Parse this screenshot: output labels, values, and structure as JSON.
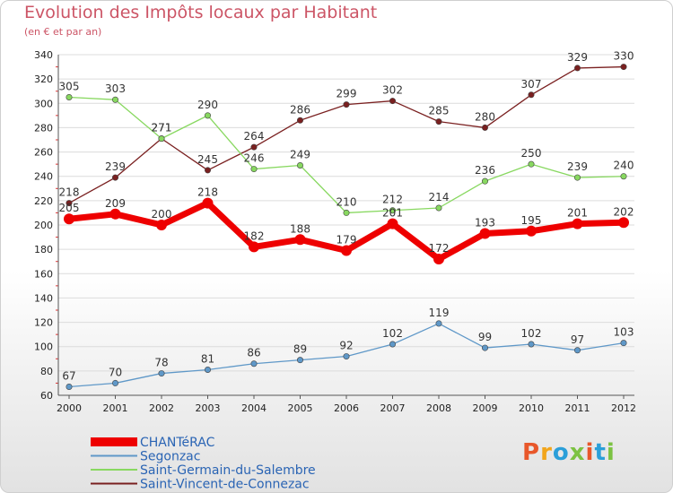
{
  "header": {
    "title": "Evolution des Impôts locaux par Habitant",
    "subtitle": "(en € et par an)"
  },
  "logo": {
    "text": "Proxiti",
    "colors": [
      "#e8572a",
      "#f2a51b",
      "#2b9fd9",
      "#7cc242",
      "#e8572a",
      "#2b9fd9",
      "#7cc242"
    ]
  },
  "chart_data": {
    "type": "line",
    "title": "Evolution des Impôts locaux par Habitant",
    "subtitle": "(en € et par an)",
    "xlabel": "",
    "ylabel": "",
    "x": [
      "2000",
      "2001",
      "2002",
      "2003",
      "2004",
      "2005",
      "2006",
      "2007",
      "2008",
      "2009",
      "2010",
      "2011",
      "2012"
    ],
    "ylim": [
      60,
      340
    ],
    "yticks": [
      60,
      80,
      100,
      120,
      140,
      160,
      180,
      200,
      220,
      240,
      260,
      280,
      300,
      320,
      340
    ],
    "grid": true,
    "legend_position": "bottom-left",
    "series": [
      {
        "name": "Saint-Vincent-de-Connezac",
        "color": "#7a2020",
        "values": [
          218,
          239,
          271,
          245,
          264,
          286,
          299,
          302,
          285,
          280,
          307,
          329,
          330
        ]
      },
      {
        "name": "Saint-Germain-du-Salembre",
        "color": "#88d860",
        "values": [
          305,
          303,
          271,
          290,
          246,
          249,
          210,
          212,
          214,
          236,
          250,
          239,
          240
        ]
      },
      {
        "name": "Segonzac",
        "color": "#5f98c8",
        "values": [
          67,
          70,
          78,
          81,
          86,
          89,
          92,
          102,
          119,
          99,
          102,
          97,
          103
        ]
      },
      {
        "name": "CHANTéRAC",
        "color": "#ee0000",
        "values": [
          205,
          209,
          200,
          218,
          182,
          188,
          179,
          201,
          172,
          193,
          195,
          201,
          202
        ]
      }
    ],
    "legend": [
      "CHANTéRAC",
      "Segonzac",
      "Saint-Germain-du-Salembre",
      "Saint-Vincent-de-Connezac"
    ]
  }
}
